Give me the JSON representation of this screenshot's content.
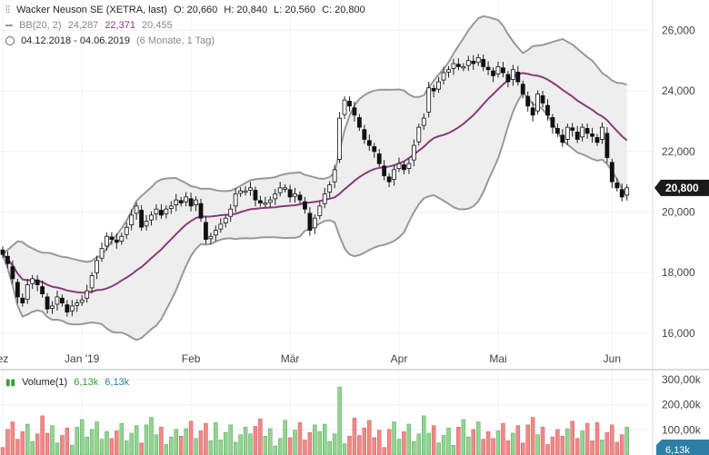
{
  "header": {
    "title": "Wacker Neuson SE (XETRA, last)",
    "ohlc": {
      "o": "O: 20,660",
      "h": "H: 20,840",
      "l": "L: 20,560",
      "c": "C: 20,800"
    },
    "bb": {
      "label": "BB(20, 2)",
      "upper": "24,287",
      "mid": "22,371",
      "lower": "20,455"
    },
    "range": {
      "dates": "04.12.2018 - 04.06.2019",
      "span": "(6 Monate, 1 Tag)"
    }
  },
  "volume_header": {
    "label": "Volume(1)",
    "v1": "6,13k",
    "v2": "6,13k"
  },
  "last_price_label": "20,800",
  "volume_last_label": "6,13k",
  "colors": {
    "up": "#2e2e2e",
    "bb_fill": "#eeeeee",
    "bb_band": "#999999",
    "bb_mid": "#8b3a7e",
    "vol_up": "#90d490",
    "vol_down": "#f08888",
    "accent": "#1a1a1a"
  },
  "chart_data": {
    "type": "candlestick",
    "x_ticks": [
      {
        "label": "ez",
        "i": 0
      },
      {
        "label": "Jan '19",
        "i": 16
      },
      {
        "label": "Feb",
        "i": 38
      },
      {
        "label": "Mär",
        "i": 58
      },
      {
        "label": "Apr",
        "i": 80
      },
      {
        "label": "Mai",
        "i": 100
      },
      {
        "label": "Jun",
        "i": 123
      }
    ],
    "price_ylim": [
      14800,
      27000
    ],
    "price_ticks": [
      {
        "label": "16,000",
        "value": 16000
      },
      {
        "label": "18,000",
        "value": 18000
      },
      {
        "label": "20,000",
        "value": 20000
      },
      {
        "label": "22,000",
        "value": 22000
      },
      {
        "label": "24,000",
        "value": 24000
      },
      {
        "label": "26,000",
        "value": 26000
      }
    ],
    "volume_ylim": [
      0,
      340000
    ],
    "volume_ticks": [
      {
        "label": "300,00k",
        "value": 300000
      },
      {
        "label": "200,00k",
        "value": 200000
      },
      {
        "label": "100,00k",
        "value": 100000
      }
    ],
    "close": [
      18600,
      18300,
      17800,
      17200,
      17000,
      17600,
      17800,
      17600,
      17300,
      16800,
      16900,
      17200,
      17000,
      16700,
      16900,
      17000,
      17100,
      17400,
      17900,
      18400,
      18800,
      19200,
      19100,
      19000,
      19200,
      19500,
      19900,
      20200,
      19500,
      19700,
      19900,
      20100,
      19900,
      20100,
      20200,
      20400,
      20300,
      20500,
      20200,
      20400,
      19800,
      19100,
      19200,
      19400,
      19600,
      19800,
      20100,
      20600,
      20700,
      20700,
      20800,
      20400,
      20300,
      20300,
      20400,
      20600,
      20800,
      20800,
      20500,
      20600,
      20400,
      20100,
      19400,
      19800,
      20200,
      20600,
      20900,
      21400,
      23100,
      23700,
      23500,
      23200,
      22800,
      22400,
      22200,
      22000,
      21600,
      21200,
      21000,
      21400,
      21600,
      21400,
      21600,
      22200,
      22800,
      23100,
      24100,
      24000,
      24300,
      24600,
      24700,
      24900,
      24800,
      24800,
      25000,
      24900,
      25100,
      24800,
      24700,
      24500,
      24800,
      24600,
      24300,
      24700,
      24300,
      23900,
      23500,
      23200,
      23900,
      23600,
      23200,
      22800,
      22600,
      22300,
      22800,
      22700,
      22400,
      22800,
      22600,
      22500,
      22300,
      22800,
      21800,
      21000,
      20800,
      20500,
      20800
    ]
  }
}
